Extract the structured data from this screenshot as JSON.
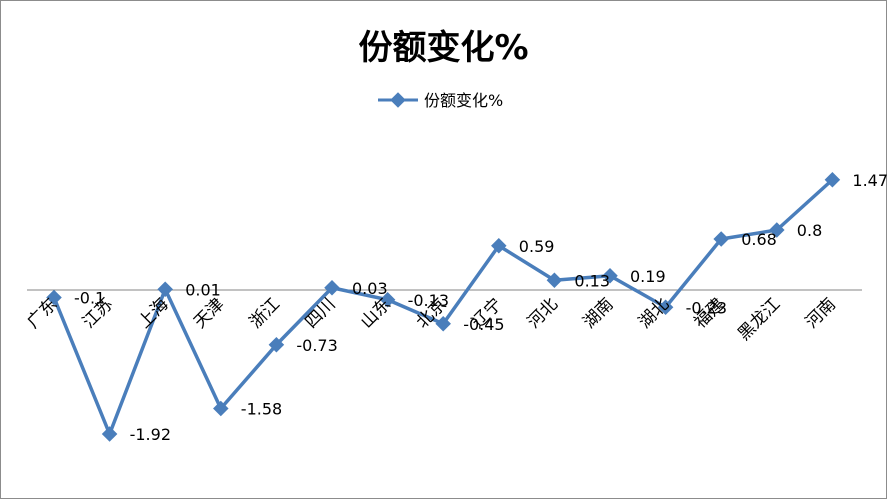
{
  "chart_data": {
    "type": "line",
    "title": "份额变化%",
    "categories": [
      "广东",
      "江苏",
      "上海",
      "天津",
      "浙江",
      "四川",
      "山东",
      "北京",
      "辽宁",
      "河北",
      "湖南",
      "湖北",
      "福建",
      "黑龙江",
      "河南"
    ],
    "series": [
      {
        "name": "份额变化%",
        "color": "#4a7ebb",
        "values": [
          -0.1,
          -1.92,
          0.01,
          -1.58,
          -0.73,
          0.03,
          -0.13,
          -0.45,
          0.59,
          0.13,
          0.19,
          -0.23,
          0.68,
          0.8,
          1.47
        ]
      }
    ],
    "data_labels": [
      "-0.1",
      "-1.92",
      "0.01",
      "-1.58",
      "-0.73",
      "0.03",
      "-0.13",
      "-0.45",
      "0.59",
      "0.13",
      "0.19",
      "-0.23",
      "0.68",
      "0.8",
      "1.47"
    ],
    "legend": "top",
    "grid": false,
    "xlabel": "",
    "ylabel": ""
  }
}
